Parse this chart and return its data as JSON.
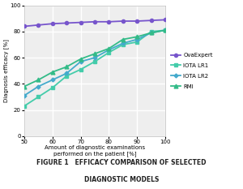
{
  "x": [
    50,
    55,
    60,
    65,
    70,
    75,
    80,
    85,
    90,
    95,
    100
  ],
  "OvaExpert": [
    84,
    85,
    86,
    86.5,
    87,
    87.5,
    87.5,
    88,
    88,
    88.5,
    89
  ],
  "IOTA_LR1": [
    23,
    30,
    37,
    46,
    51,
    57,
    64,
    70,
    72,
    80,
    81
  ],
  "IOTA_LR2": [
    31,
    38,
    43,
    48,
    57,
    60,
    66,
    71,
    74,
    79,
    81
  ],
  "RMI": [
    38,
    43,
    49,
    53,
    59,
    63,
    67,
    74,
    76,
    79,
    81
  ],
  "OvaExpert_color": "#7755cc",
  "IOTA_LR1_color": "#44ccaa",
  "IOTA_LR2_color": "#44aacc",
  "RMI_color": "#33bb88",
  "xlabel": "Amount of diagnostic examinations\nperformed on the patient [%]",
  "ylabel": "Diagnosis efficacy [%]",
  "xlim": [
    50,
    100
  ],
  "ylim": [
    0,
    100
  ],
  "xticks": [
    50,
    60,
    70,
    80,
    90,
    100
  ],
  "yticks": [
    0,
    20,
    40,
    60,
    80,
    100
  ],
  "title_line1": "FIGURE 1   EFFICACY COMPARISON OF SELECTED",
  "title_line2": "DIAGNOSTIC MODELS",
  "fig_bg_color": "#ffffff",
  "plot_bg_color": "#eeeeee",
  "grid_color": "#ffffff"
}
